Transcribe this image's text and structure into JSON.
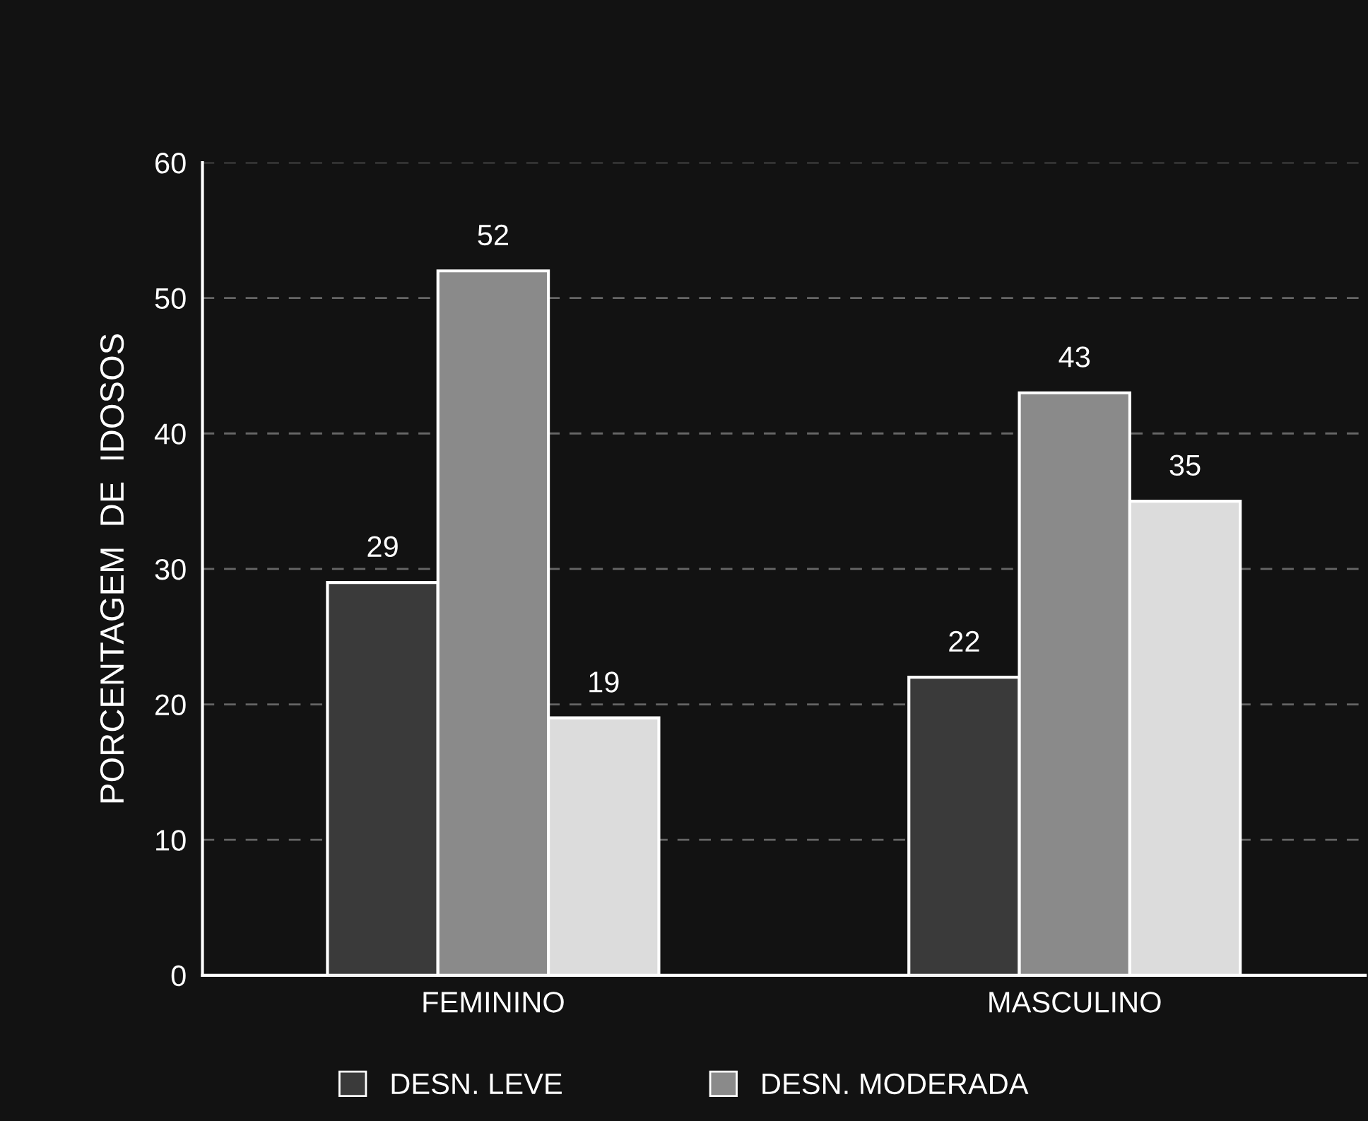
{
  "chart_data": {
    "type": "bar",
    "ylabel": "PORCENTAGEM  DE  IDOSOS",
    "categories": [
      "FEMININO",
      "MASCULINO"
    ],
    "series": [
      {
        "name": "DESN. LEVE",
        "color": "#3a3a3a",
        "values": [
          29,
          22
        ]
      },
      {
        "name": "DESN. MODERADA",
        "color": "#8a8a8a",
        "values": [
          52,
          43
        ]
      },
      {
        "color": "#dcdcdc",
        "values": [
          19,
          35
        ]
      }
    ],
    "ylim": [
      0,
      60
    ],
    "yticks": [
      0,
      10,
      20,
      30,
      40,
      50,
      60
    ],
    "grid": "y",
    "legend": "bottom",
    "data_labels": true
  }
}
